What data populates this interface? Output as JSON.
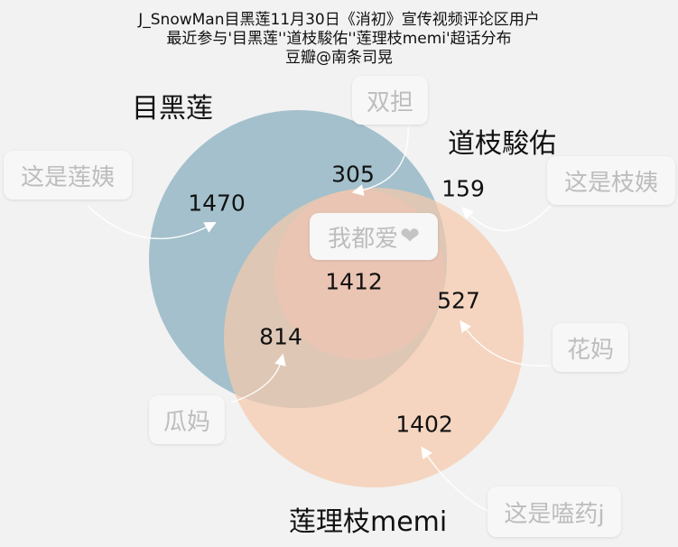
{
  "title": {
    "line1": "J_SnowMan目黑莲11月30日《消初》宣传视频评论区用户",
    "line2": "最近参与'目黑莲''道枝駿佑''莲理枝memi'超话分布",
    "line3": "豆瓣@南条司晃"
  },
  "sets": {
    "a": {
      "label": "目黑莲",
      "color": "#a3c0cc"
    },
    "b": {
      "label": "道枝駿佑",
      "color": "#dbb9c3"
    },
    "c": {
      "label": "莲理枝memi",
      "color": "#f5c9ac"
    }
  },
  "regions": {
    "a_only": "1470",
    "b_only": "159",
    "c_only": "1402",
    "ab": "305",
    "ac": "814",
    "bc": "527",
    "abc": "1412"
  },
  "notes": {
    "double": "双担",
    "a_fan": "这是莲姨",
    "b_fan": "这是枝姨",
    "all": "我都爱",
    "all_heart": "❤",
    "bc_fan": "花妈",
    "ac_fan": "瓜妈",
    "c_fan": "这是嗑药j"
  }
}
